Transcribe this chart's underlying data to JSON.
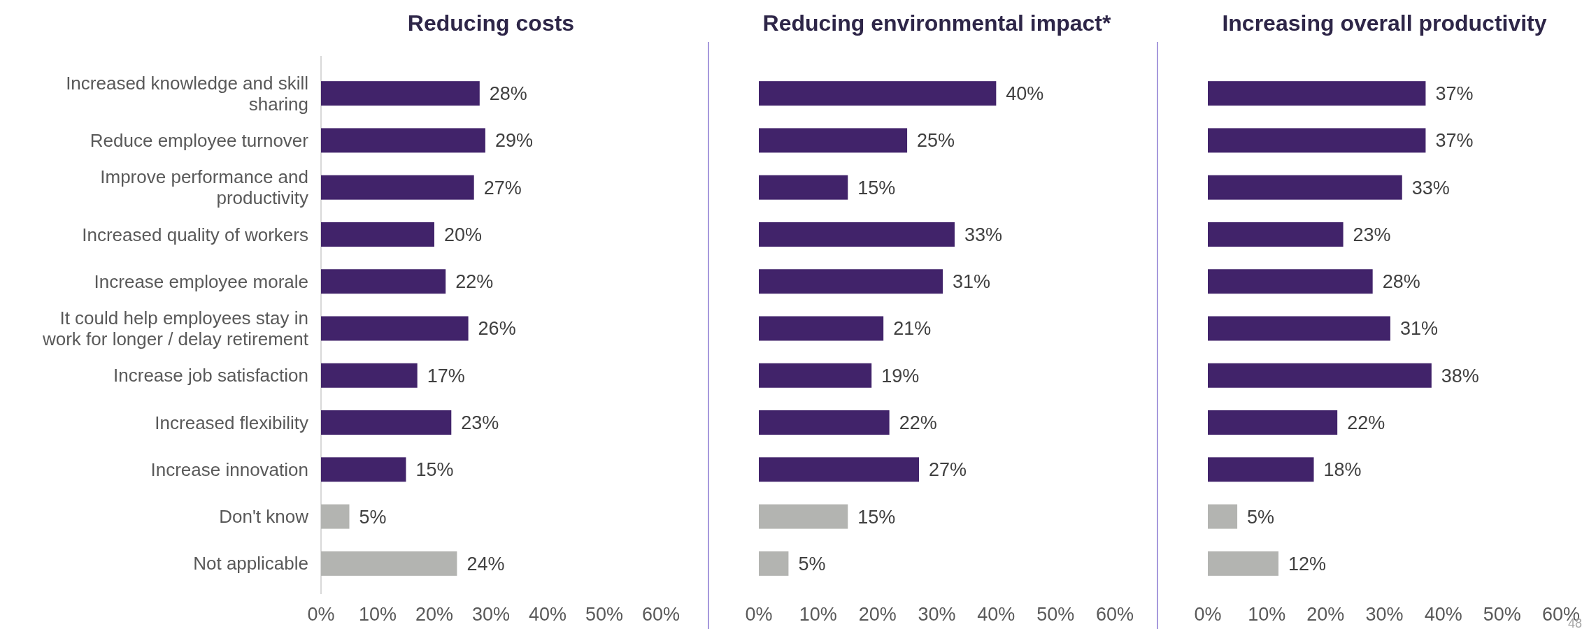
{
  "chart_data": [
    {
      "type": "bar",
      "orientation": "horizontal",
      "title": "Reducing costs",
      "categories": [
        "Increased knowledge and skill sharing",
        "Reduce employee turnover",
        "Improve performance and productivity",
        "Increased quality of workers",
        "Increase employee morale",
        "It could help employees stay in work for longer / delay retirement",
        "Increase job satisfaction",
        "Increased flexibility",
        "Increase innovation",
        "Don't know",
        "Not applicable"
      ],
      "values": [
        28,
        29,
        27,
        20,
        22,
        26,
        17,
        23,
        15,
        5,
        24
      ],
      "value_labels": [
        "28%",
        "29%",
        "27%",
        "20%",
        "22%",
        "26%",
        "17%",
        "23%",
        "15%",
        "5%",
        "24%"
      ],
      "colors": [
        "#41236a",
        "#41236a",
        "#41236a",
        "#41236a",
        "#41236a",
        "#41236a",
        "#41236a",
        "#41236a",
        "#41236a",
        "#b3b4b1",
        "#b3b4b1"
      ],
      "xlim": [
        0,
        60
      ],
      "xticks": [
        {
          "value": 0,
          "label": "0%"
        },
        {
          "value": 10,
          "label": "10%"
        },
        {
          "value": 20,
          "label": "20%"
        },
        {
          "value": 30,
          "label": "30%"
        },
        {
          "value": 40,
          "label": "40%"
        },
        {
          "value": 50,
          "label": "50%"
        },
        {
          "value": 60,
          "label": "60%"
        }
      ]
    },
    {
      "type": "bar",
      "orientation": "horizontal",
      "title": "Reducing environmental impact*",
      "categories": [
        null,
        null,
        null,
        null,
        null,
        null,
        null,
        null,
        null,
        null,
        null
      ],
      "values": [
        40,
        25,
        15,
        33,
        31,
        21,
        19,
        22,
        27,
        15,
        5
      ],
      "value_labels": [
        "40%",
        "25%",
        "15%",
        "33%",
        "31%",
        "21%",
        "19%",
        "22%",
        "27%",
        "15%",
        "5%"
      ],
      "colors": [
        "#41236a",
        "#41236a",
        "#41236a",
        "#41236a",
        "#41236a",
        "#41236a",
        "#41236a",
        "#41236a",
        "#41236a",
        "#b3b4b1",
        "#b3b4b1"
      ],
      "xlim": [
        0,
        60
      ],
      "xticks": [
        {
          "value": 0,
          "label": "0%"
        },
        {
          "value": 10,
          "label": "10%"
        },
        {
          "value": 20,
          "label": "20%"
        },
        {
          "value": 30,
          "label": "30%"
        },
        {
          "value": 40,
          "label": "40%"
        },
        {
          "value": 50,
          "label": "50%"
        },
        {
          "value": 60,
          "label": "60%"
        }
      ],
      "tick_labels": "x"
    },
    {
      "type": "bar",
      "orientation": "horizontal",
      "title": "Increasing overall productivity",
      "categories": [
        null,
        null,
        null,
        null,
        null,
        null,
        null,
        null,
        null,
        null,
        null
      ],
      "values": [
        37,
        37,
        33,
        23,
        28,
        31,
        38,
        22,
        18,
        5,
        12
      ],
      "value_labels": [
        "37%",
        "37%",
        "33%",
        "23%",
        "28%",
        "31%",
        "38%",
        "22%",
        "18%",
        "5%",
        "12%"
      ],
      "colors": [
        "#41236a",
        "#41236a",
        "#41236a",
        "#41236a",
        "#41236a",
        "#41236a",
        "#41236a",
        "#41236a",
        "#41236a",
        "#b3b4b1",
        "#b3b4b1"
      ],
      "xlim": [
        0,
        60
      ],
      "xticks": [
        {
          "value": 0,
          "label": "0%"
        },
        {
          "value": 10,
          "label": "10%"
        },
        {
          "value": 20,
          "label": "20%"
        },
        {
          "value": 30,
          "label": "30%"
        },
        {
          "value": 40,
          "label": "40%"
        },
        {
          "value": 50,
          "label": "50%"
        },
        {
          "value": 60,
          "label": "60%"
        }
      ],
      "tick_labels": "x",
      "annotations": [
        "48"
      ]
    }
  ]
}
